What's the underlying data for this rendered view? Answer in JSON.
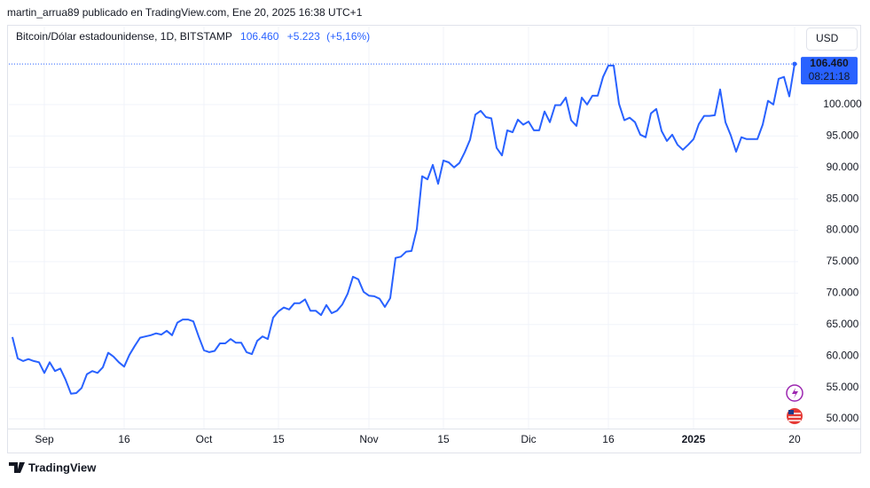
{
  "publisher_line": "martin_arrua89 publicado en TradingView.com, Ene 20, 2025 16:38 UTC+1",
  "footer_logo": "TradingView",
  "currency_button": "USD",
  "chart_data": {
    "type": "line",
    "title": "Bitcoin/Dólar estadounidense, 1D, BITSTAMP",
    "last_price": "106.460",
    "change": "+5.223",
    "change_pct": "(+5,16%)",
    "last_price_label": "106.460",
    "countdown": "08:21:18",
    "color": "#2962ff",
    "grid": true,
    "xlim": [
      -6.67,
      141.67
    ],
    "ylim": [
      48450,
      112400
    ],
    "xticks": [
      {
        "value": 0,
        "label": "Sep"
      },
      {
        "value": 15,
        "label": "16"
      },
      {
        "value": 30,
        "label": "Oct"
      },
      {
        "value": 44,
        "label": "15"
      },
      {
        "value": 61,
        "label": "Nov"
      },
      {
        "value": 75,
        "label": "15"
      },
      {
        "value": 91,
        "label": "Dic"
      },
      {
        "value": 106,
        "label": "16"
      },
      {
        "value": 122,
        "label": "2025"
      },
      {
        "value": 141,
        "label": "20"
      }
    ],
    "yticks": [
      {
        "value": 50000,
        "label": "50.000"
      },
      {
        "value": 55000,
        "label": "55.000"
      },
      {
        "value": 60000,
        "label": "60.000"
      },
      {
        "value": 65000,
        "label": "65.000"
      },
      {
        "value": 70000,
        "label": "70.000"
      },
      {
        "value": 75000,
        "label": "75.000"
      },
      {
        "value": 80000,
        "label": "80.000"
      },
      {
        "value": 85000,
        "label": "85.000"
      },
      {
        "value": 90000,
        "label": "90.000"
      },
      {
        "value": 95000,
        "label": "95.000"
      },
      {
        "value": 100000,
        "label": "100.000"
      }
    ],
    "x": [
      -6,
      -5,
      -4,
      -3,
      -2,
      -1,
      0,
      1,
      2,
      3,
      4,
      5,
      6,
      7,
      8,
      9,
      10,
      11,
      12,
      13,
      14,
      15,
      16,
      17,
      18,
      19,
      20,
      21,
      22,
      23,
      24,
      25,
      26,
      27,
      28,
      29,
      30,
      31,
      32,
      33,
      34,
      35,
      36,
      37,
      38,
      39,
      40,
      41,
      42,
      43,
      44,
      45,
      46,
      47,
      48,
      49,
      50,
      51,
      52,
      53,
      54,
      55,
      56,
      57,
      58,
      59,
      60,
      61,
      62,
      63,
      64,
      65,
      66,
      67,
      68,
      69,
      70,
      71,
      72,
      73,
      74,
      75,
      76,
      77,
      78,
      79,
      80,
      81,
      82,
      83,
      84,
      85,
      86,
      87,
      88,
      89,
      90,
      91,
      92,
      93,
      94,
      95,
      96,
      97,
      98,
      99,
      100,
      101,
      102,
      103,
      104,
      105,
      106,
      107,
      108,
      109,
      110,
      111,
      112,
      113,
      114,
      115,
      116,
      117,
      118,
      119,
      120,
      121,
      122,
      123,
      124,
      125,
      126,
      127,
      128,
      129,
      130,
      131,
      132,
      133,
      134,
      135,
      136,
      137,
      138,
      139,
      140,
      141
    ],
    "series": [
      {
        "name": "BTCUSD",
        "color": "#2962ff",
        "values": [
          63000,
          59600,
          59200,
          59500,
          59200,
          59000,
          57300,
          59000,
          57600,
          58000,
          56200,
          54000,
          54100,
          54900,
          57100,
          57600,
          57300,
          58200,
          60500,
          59900,
          59000,
          58300,
          60200,
          61600,
          62900,
          63100,
          63300,
          63600,
          63400,
          64000,
          63300,
          65300,
          65800,
          65800,
          65500,
          63100,
          60900,
          60600,
          60800,
          62000,
          62000,
          62700,
          62100,
          62100,
          60600,
          60300,
          62400,
          63100,
          62700,
          66100,
          67100,
          67700,
          67400,
          68400,
          68400,
          69000,
          67200,
          67200,
          66500,
          68100,
          66800,
          67200,
          68200,
          69900,
          72600,
          72200,
          70200,
          69600,
          69500,
          69100,
          67800,
          69200,
          75600,
          75800,
          76600,
          76700,
          80200,
          88600,
          88100,
          90400,
          87400,
          91100,
          90800,
          90000,
          90700,
          92400,
          94400,
          98400,
          99000,
          98000,
          97800,
          93100,
          91900,
          95900,
          95600,
          97600,
          96800,
          97300,
          95900,
          95900,
          98900,
          97200,
          99900,
          99900,
          101100,
          97500,
          96600,
          101100,
          100000,
          101400,
          101400,
          104400,
          106200,
          106200,
          100100,
          97500,
          97900,
          97200,
          95200,
          94800,
          98600,
          99300,
          95800,
          94200,
          95200,
          93600,
          92800,
          93600,
          94500,
          96900,
          98200,
          98200,
          98300,
          102400,
          97200,
          95100,
          92500,
          94800,
          94500,
          94500,
          94500,
          96800,
          100600,
          100000,
          104100,
          104400,
          101300,
          106460
        ]
      }
    ]
  }
}
